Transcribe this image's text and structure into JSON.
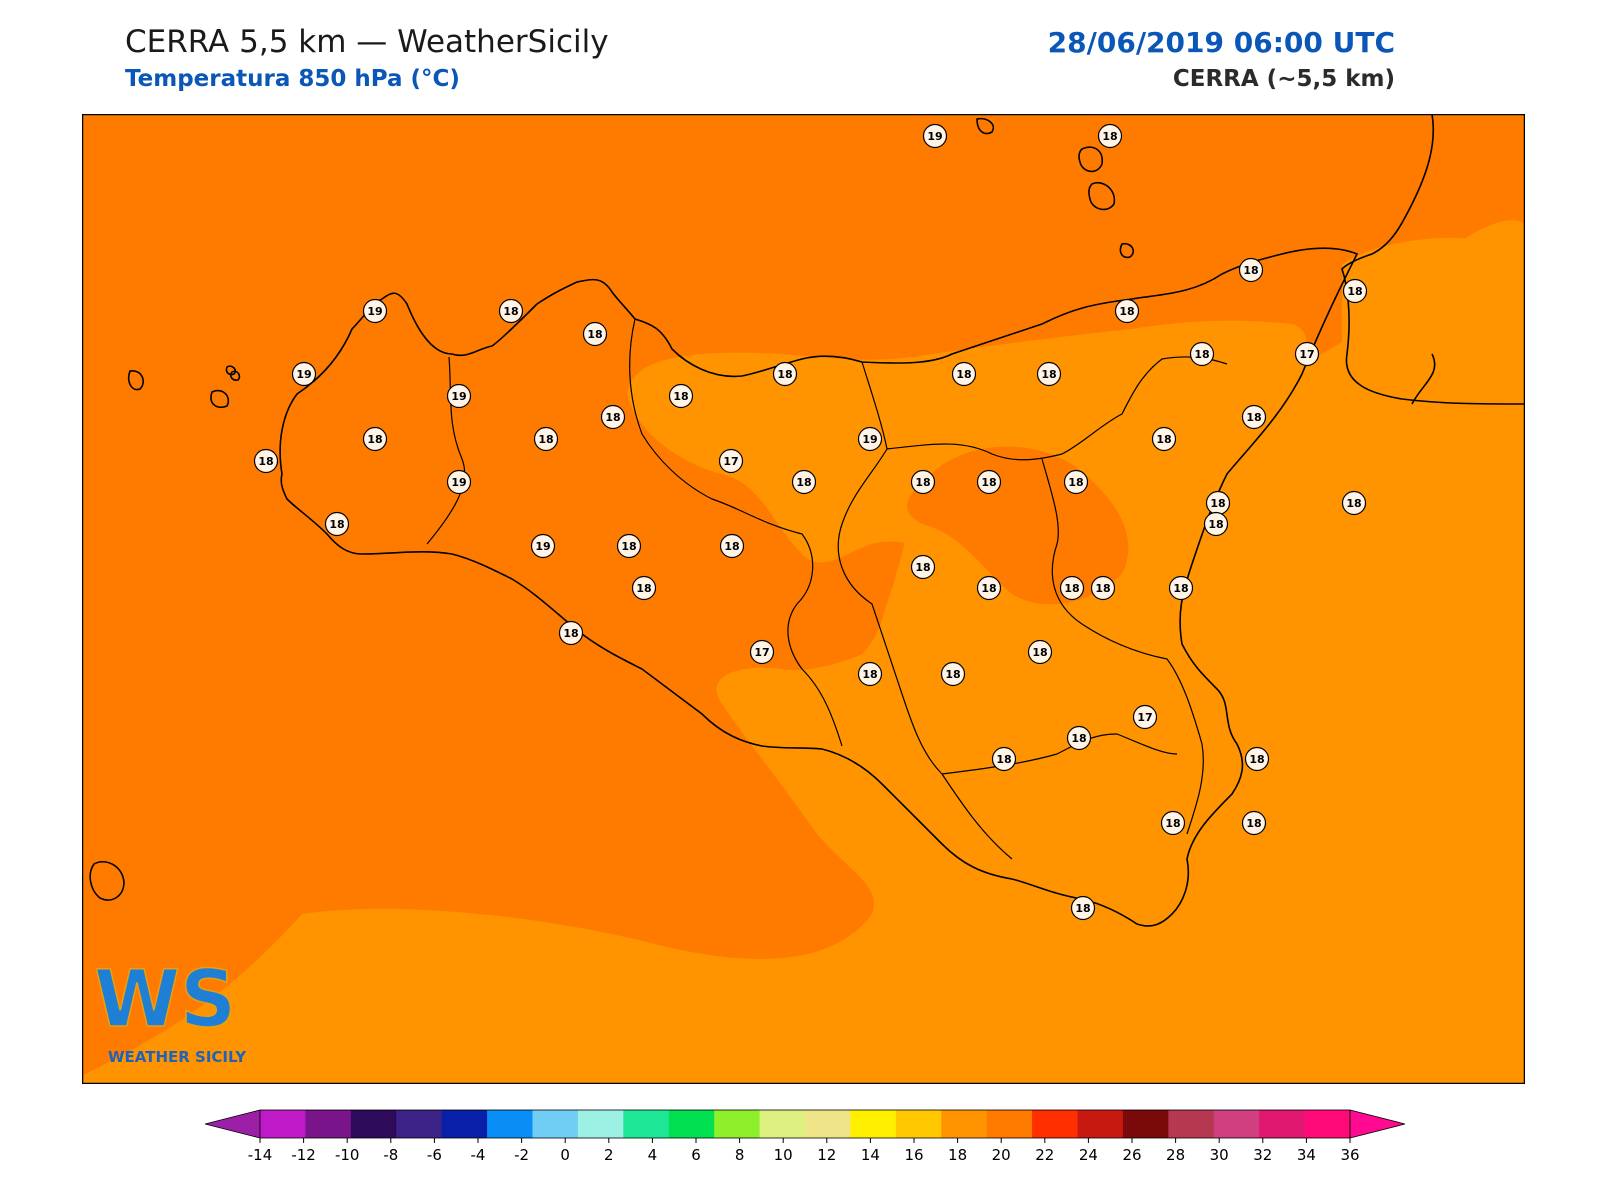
{
  "header": {
    "title": "CERRA 5,5 km — WeatherSicily",
    "subtitle": "Temperatura 850 hPa (°C)",
    "datetime": "28/06/2019 06:00 UTC",
    "model": "CERRA (~5,5 km)"
  },
  "logo": {
    "monogram": "WS",
    "text": "WEATHER SICILY"
  },
  "colors": {
    "field_19_20": "#ff7b00",
    "field_18_19": "#ff9400",
    "coastline": "#000000",
    "title_accent": "#0b57b8"
  },
  "stations": [
    {
      "value": "19"
    },
    {
      "value": "18"
    },
    {
      "value": "18"
    },
    {
      "value": "18"
    },
    {
      "value": "19"
    },
    {
      "value": "18"
    },
    {
      "value": "18"
    },
    {
      "value": "19"
    },
    {
      "value": "19"
    },
    {
      "value": "18"
    },
    {
      "value": "18"
    },
    {
      "value": "18"
    },
    {
      "value": "18"
    },
    {
      "value": "17"
    },
    {
      "value": "18"
    },
    {
      "value": "18"
    },
    {
      "value": "18"
    },
    {
      "value": "19"
    },
    {
      "value": "18"
    },
    {
      "value": "18"
    },
    {
      "value": "18"
    },
    {
      "value": "18"
    },
    {
      "value": "18"
    },
    {
      "value": "17"
    },
    {
      "value": "19"
    },
    {
      "value": "18"
    },
    {
      "value": "18"
    },
    {
      "value": "18"
    },
    {
      "value": "18"
    },
    {
      "value": "18"
    },
    {
      "value": "18"
    },
    {
      "value": "19"
    },
    {
      "value": "18"
    },
    {
      "value": "18"
    },
    {
      "value": "18"
    },
    {
      "value": "18"
    },
    {
      "value": "18"
    },
    {
      "value": "18"
    },
    {
      "value": "18"
    },
    {
      "value": "18"
    },
    {
      "value": "18"
    },
    {
      "value": "18"
    },
    {
      "value": "18"
    },
    {
      "value": "17"
    },
    {
      "value": "18"
    },
    {
      "value": "18"
    },
    {
      "value": "18"
    },
    {
      "value": "17"
    },
    {
      "value": "18"
    },
    {
      "value": "18"
    },
    {
      "value": "18"
    },
    {
      "value": "18"
    },
    {
      "value": "18"
    },
    {
      "value": "18"
    }
  ],
  "colorbar": {
    "colors": [
      "#9c1fa8",
      "#c01ac8",
      "#7a148a",
      "#2d0a5a",
      "#3d2288",
      "#0a1fa8",
      "#0a8ef5",
      "#70cef5",
      "#9cf0e4",
      "#1ee898",
      "#00e050",
      "#8ef02a",
      "#ddf080",
      "#f0e488",
      "#fff000",
      "#ffc800",
      "#ff9400",
      "#ff7b00",
      "#ff2f00",
      "#c81910",
      "#7a0a0a",
      "#b53850",
      "#d04080",
      "#e01870",
      "#ff0a78",
      "#ff0a90"
    ],
    "ticks": [
      "-14",
      "-12",
      "-10",
      "-8",
      "-6",
      "-4",
      "-2",
      "0",
      "2",
      "4",
      "6",
      "8",
      "10",
      "12",
      "14",
      "16",
      "18",
      "20",
      "22",
      "24",
      "26",
      "28",
      "30",
      "32",
      "34",
      "36"
    ]
  }
}
